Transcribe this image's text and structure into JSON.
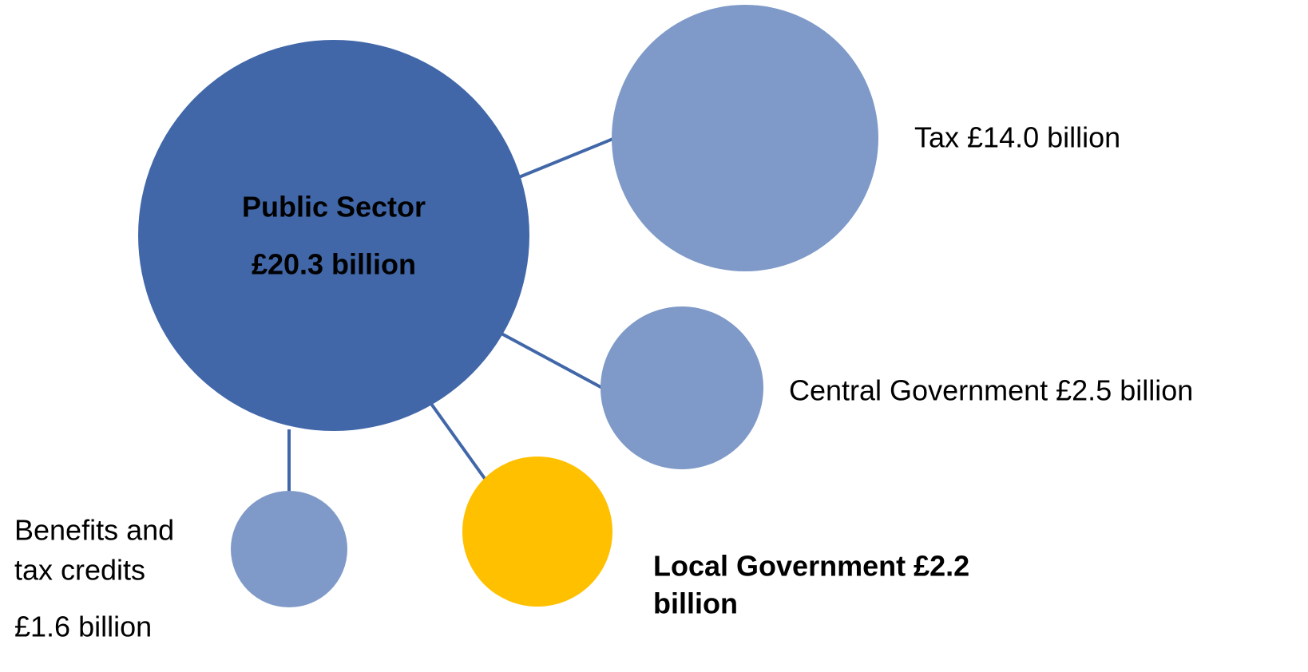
{
  "nodes": [
    {
      "label": [
        "Public Sector",
        "£20.3 billion"
      ]
    },
    {
      "label": [
        "Tax £14.0 billion"
      ]
    },
    {
      "label": [
        "Central Government £2.5 billion"
      ]
    },
    {
      "label": [
        "Local Government £2.2",
        "billion"
      ]
    },
    {
      "label": [
        "Benefits and",
        "tax credits",
        "£1.6 billion"
      ]
    }
  ]
}
